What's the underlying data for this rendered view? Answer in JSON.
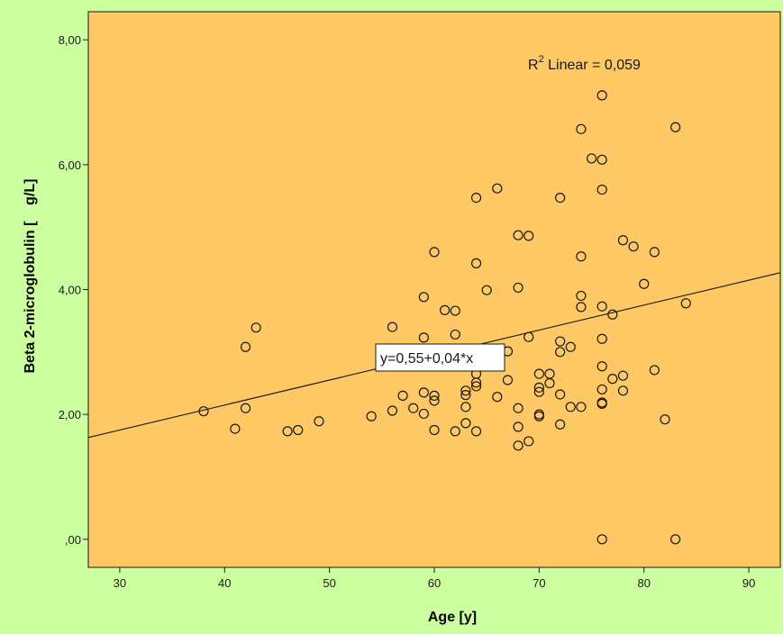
{
  "chart_data": {
    "type": "scatter",
    "xlabel": "Age [y]",
    "ylabel": "Beta 2-microglobulin [    g/L]",
    "xlim": [
      27,
      93
    ],
    "ylim": [
      -0.45,
      8.45
    ],
    "x_ticks": [
      30,
      40,
      50,
      60,
      70,
      80,
      90
    ],
    "x_tick_labels": [
      "30",
      "40",
      "50",
      "60",
      "70",
      "80",
      "90"
    ],
    "y_ticks": [
      0,
      2,
      4,
      6,
      8
    ],
    "y_tick_labels": [
      ",00",
      "2,00",
      "4,00",
      "6,00",
      "8,00"
    ],
    "grid": false,
    "annotation_r2": {
      "base": "R",
      "sup": "2",
      "rest": " Linear = 0,059"
    },
    "fit_line": {
      "intercept": 0.55,
      "slope": 0.04,
      "label": "y=0,55+0,04*x"
    },
    "colors": {
      "background": "#ccffa0",
      "plot_area": "#fec864",
      "marker": "#1a1a1a",
      "line": "#1a1a1a"
    },
    "points": [
      {
        "x": 38,
        "y": 2.05
      },
      {
        "x": 41,
        "y": 1.77
      },
      {
        "x": 42,
        "y": 2.1
      },
      {
        "x": 42,
        "y": 3.08
      },
      {
        "x": 43,
        "y": 3.39
      },
      {
        "x": 46,
        "y": 1.73
      },
      {
        "x": 47,
        "y": 1.75
      },
      {
        "x": 49,
        "y": 1.89
      },
      {
        "x": 54,
        "y": 1.97
      },
      {
        "x": 56,
        "y": 2.06
      },
      {
        "x": 56,
        "y": 3.4
      },
      {
        "x": 57,
        "y": 2.3
      },
      {
        "x": 58,
        "y": 2.1
      },
      {
        "x": 59,
        "y": 2.01
      },
      {
        "x": 59,
        "y": 2.35
      },
      {
        "x": 59,
        "y": 3.23
      },
      {
        "x": 59,
        "y": 3.88
      },
      {
        "x": 60,
        "y": 1.75
      },
      {
        "x": 60,
        "y": 2.22
      },
      {
        "x": 60,
        "y": 2.3
      },
      {
        "x": 60,
        "y": 4.6
      },
      {
        "x": 61,
        "y": 3.67
      },
      {
        "x": 62,
        "y": 1.73
      },
      {
        "x": 62,
        "y": 3.28
      },
      {
        "x": 62,
        "y": 3.66
      },
      {
        "x": 63,
        "y": 1.86
      },
      {
        "x": 63,
        "y": 2.12
      },
      {
        "x": 63,
        "y": 2.31
      },
      {
        "x": 63,
        "y": 2.38
      },
      {
        "x": 64,
        "y": 1.73
      },
      {
        "x": 64,
        "y": 2.45
      },
      {
        "x": 64,
        "y": 2.51
      },
      {
        "x": 64,
        "y": 2.65
      },
      {
        "x": 64,
        "y": 4.42
      },
      {
        "x": 64,
        "y": 5.47
      },
      {
        "x": 65,
        "y": 3.99
      },
      {
        "x": 66,
        "y": 2.28
      },
      {
        "x": 66,
        "y": 5.62
      },
      {
        "x": 67,
        "y": 2.55
      },
      {
        "x": 67,
        "y": 3.01
      },
      {
        "x": 68,
        "y": 1.5
      },
      {
        "x": 68,
        "y": 1.8
      },
      {
        "x": 68,
        "y": 2.1
      },
      {
        "x": 68,
        "y": 4.03
      },
      {
        "x": 68,
        "y": 4.87
      },
      {
        "x": 69,
        "y": 1.57
      },
      {
        "x": 69,
        "y": 3.24
      },
      {
        "x": 69,
        "y": 4.86
      },
      {
        "x": 70,
        "y": 1.97
      },
      {
        "x": 70,
        "y": 2.0
      },
      {
        "x": 70,
        "y": 2.36
      },
      {
        "x": 70,
        "y": 2.43
      },
      {
        "x": 70,
        "y": 2.65
      },
      {
        "x": 71,
        "y": 2.5
      },
      {
        "x": 71,
        "y": 2.65
      },
      {
        "x": 72,
        "y": 1.84
      },
      {
        "x": 72,
        "y": 2.32
      },
      {
        "x": 72,
        "y": 3.0
      },
      {
        "x": 72,
        "y": 3.17
      },
      {
        "x": 72,
        "y": 5.47
      },
      {
        "x": 73,
        "y": 2.12
      },
      {
        "x": 73,
        "y": 3.08
      },
      {
        "x": 74,
        "y": 2.12
      },
      {
        "x": 74,
        "y": 3.72
      },
      {
        "x": 74,
        "y": 3.9
      },
      {
        "x": 74,
        "y": 4.53
      },
      {
        "x": 74,
        "y": 6.57
      },
      {
        "x": 75,
        "y": 6.1
      },
      {
        "x": 76,
        "y": 0.0
      },
      {
        "x": 76,
        "y": 2.17
      },
      {
        "x": 76,
        "y": 2.19
      },
      {
        "x": 76,
        "y": 2.4
      },
      {
        "x": 76,
        "y": 2.77
      },
      {
        "x": 76,
        "y": 3.21
      },
      {
        "x": 76,
        "y": 3.73
      },
      {
        "x": 76,
        "y": 5.6
      },
      {
        "x": 76,
        "y": 6.08
      },
      {
        "x": 76,
        "y": 7.11
      },
      {
        "x": 77,
        "y": 2.57
      },
      {
        "x": 77,
        "y": 3.6
      },
      {
        "x": 78,
        "y": 2.38
      },
      {
        "x": 78,
        "y": 2.62
      },
      {
        "x": 78,
        "y": 4.79
      },
      {
        "x": 79,
        "y": 4.69
      },
      {
        "x": 80,
        "y": 4.09
      },
      {
        "x": 81,
        "y": 2.71
      },
      {
        "x": 81,
        "y": 4.6
      },
      {
        "x": 82,
        "y": 1.92
      },
      {
        "x": 83,
        "y": 0.0
      },
      {
        "x": 83,
        "y": 6.6
      },
      {
        "x": 84,
        "y": 3.78
      }
    ]
  }
}
